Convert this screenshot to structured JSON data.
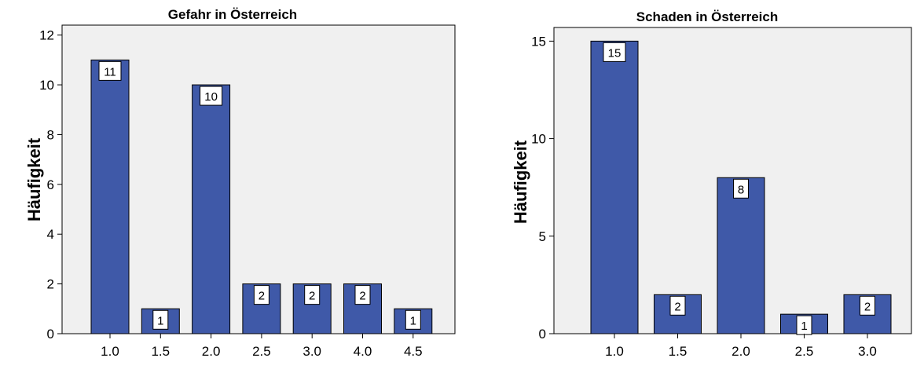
{
  "chart_data": [
    {
      "type": "bar",
      "title": "Gefahr in Österreich",
      "xlabel": "",
      "ylabel": "Häufigkeit",
      "categories": [
        "1.0",
        "1.5",
        "2.0",
        "2.5",
        "3.0",
        "4.0",
        "4.5"
      ],
      "values": [
        11,
        1,
        10,
        2,
        2,
        2,
        1
      ],
      "data_labels": [
        "11",
        "1",
        "10",
        "2",
        "2",
        "2",
        "1"
      ],
      "ylim": [
        0,
        12.4
      ],
      "yticks": [
        0,
        2,
        4,
        6,
        8,
        10,
        12
      ],
      "ytick_labels": [
        "0",
        "2",
        "4",
        "6",
        "8",
        "10",
        "12"
      ],
      "grid": false,
      "bar_color": "#3f59a8",
      "background_color": "#f0f0f0"
    },
    {
      "type": "bar",
      "title": "Schaden in Österreich",
      "xlabel": "",
      "ylabel": "Häufigkeit",
      "categories": [
        "1.0",
        "1.5",
        "2.0",
        "2.5",
        "3.0"
      ],
      "values": [
        15,
        2,
        8,
        1,
        2
      ],
      "data_labels": [
        "15",
        "2",
        "8",
        "1",
        "2"
      ],
      "ylim": [
        0,
        15.7
      ],
      "yticks": [
        0,
        5,
        10,
        15
      ],
      "ytick_labels": [
        "0",
        "5",
        "10",
        "15"
      ],
      "grid": false,
      "bar_color": "#3f59a8",
      "background_color": "#f0f0f0"
    }
  ]
}
